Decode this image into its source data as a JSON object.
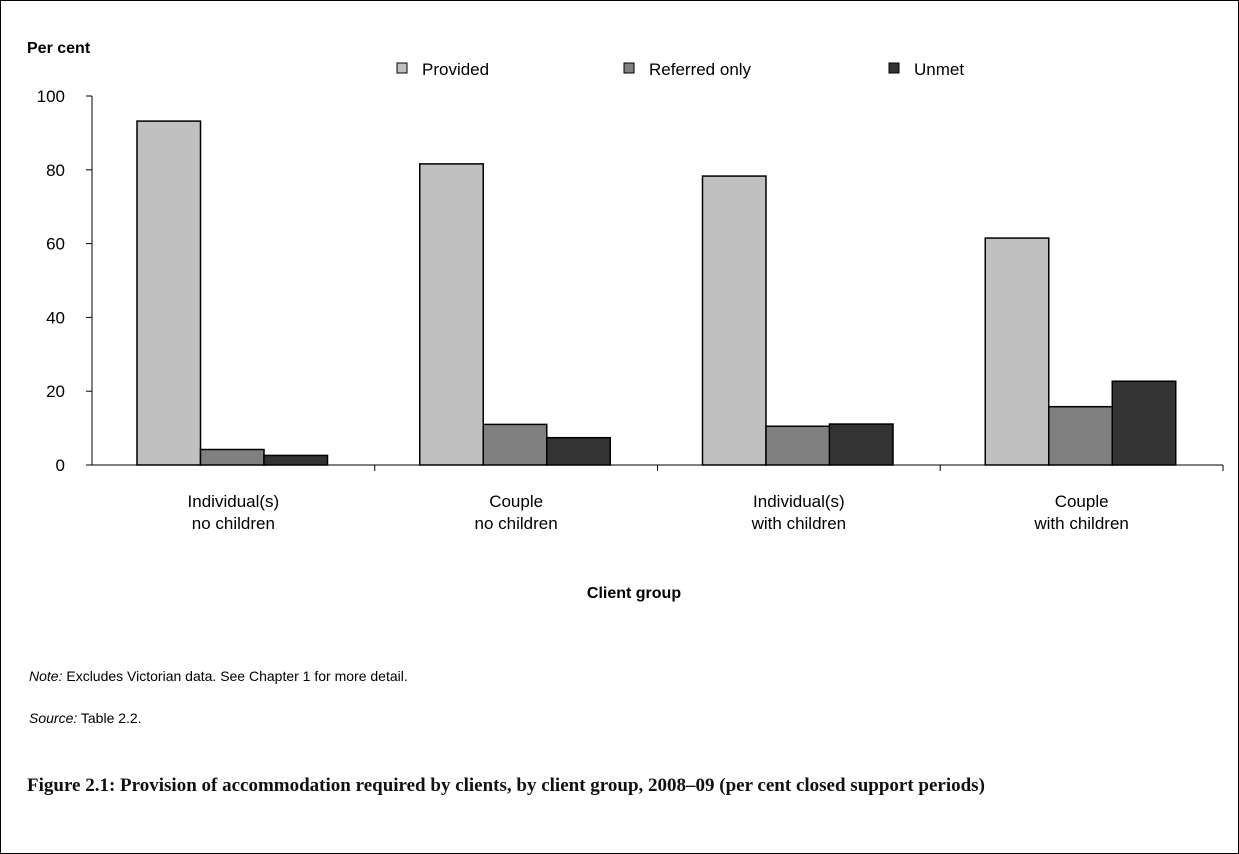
{
  "chart_data": {
    "type": "bar",
    "ylabel": "Per cent",
    "xlabel": "Client group",
    "ylim": [
      0,
      100
    ],
    "yticks": [
      0,
      20,
      40,
      60,
      80,
      100
    ],
    "grid": false,
    "legend_position": "top",
    "categories": [
      [
        "Individual(s)",
        "no children"
      ],
      [
        "Couple",
        "no children"
      ],
      [
        "Individual(s)",
        "with children"
      ],
      [
        "Couple",
        "with children"
      ]
    ],
    "series": [
      {
        "name": "Provided",
        "color": "#c0c0c0",
        "values": [
          93.2,
          81.6,
          78.3,
          61.5
        ]
      },
      {
        "name": "Referred only",
        "color": "#808080",
        "values": [
          4.2,
          11.0,
          10.5,
          15.8
        ]
      },
      {
        "name": "Unmet",
        "color": "#333333",
        "values": [
          2.6,
          7.4,
          11.1,
          22.7
        ]
      }
    ]
  },
  "notes": {
    "note_label": "Note:",
    "note_text": " Excludes Victorian data. See Chapter 1 for more detail.",
    "source_label": "Source:",
    "source_text": " Table 2.2."
  },
  "caption": "Figure 2.1: Provision of accommodation required by clients, by client group, 2008–09 (per cent closed support periods)"
}
